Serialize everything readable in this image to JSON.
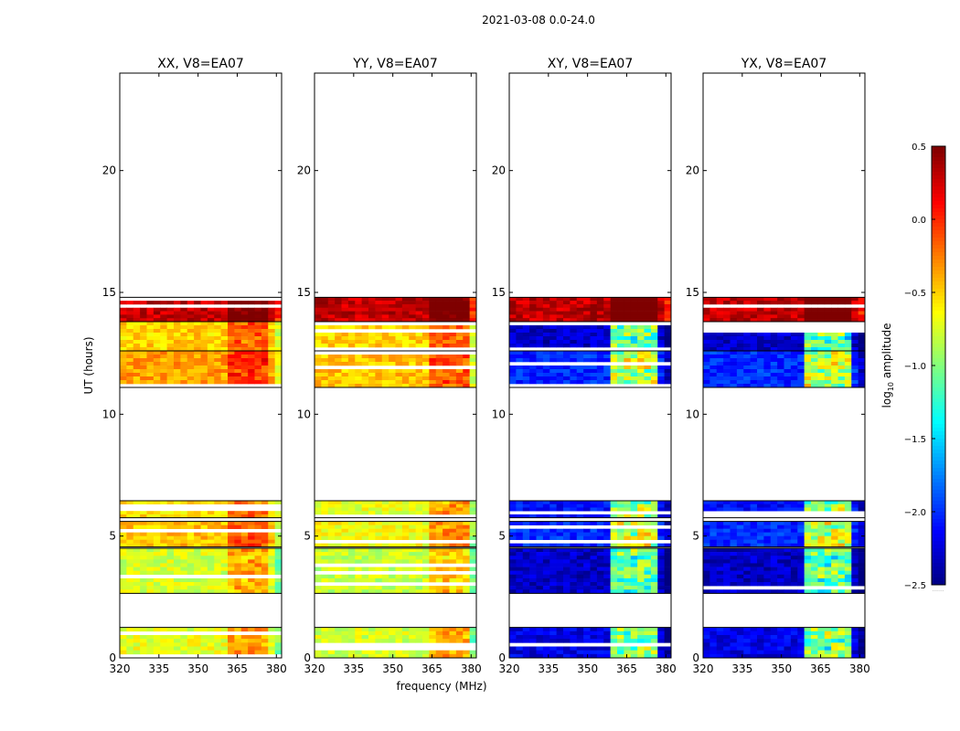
{
  "title": "2021-03-08 0.0-24.0",
  "xlabel": "frequency (MHz)",
  "ylabel": "UT (hours)",
  "colorbar_label": "log",
  "colorbar_label_sub": "10",
  "colorbar_label_rest": " amplitude",
  "colorbar_extra": ".......",
  "colormap": [
    "#00007f",
    "#0000ff",
    "#007fff",
    "#00ffff",
    "#7fff7f",
    "#ffff00",
    "#ff7f00",
    "#ff0000",
    "#7f0000"
  ],
  "chart_data": [
    {
      "type": "heatmap",
      "title": "XX, V8=EA07",
      "xlim": [
        320,
        382
      ],
      "ylim": [
        0,
        24
      ],
      "xticks": [
        320,
        335,
        350,
        365,
        380
      ],
      "yticks": [
        0,
        5,
        10,
        15,
        20
      ],
      "yticklabels": [
        "0",
        "5",
        "10",
        "15",
        "20"
      ],
      "base": {
        "low": -0.35,
        "high": -0.3
      },
      "blocks": [
        {
          "t0": 0.0,
          "t1": 1.25,
          "value": -0.7
        },
        {
          "t0": 2.65,
          "t1": 4.5,
          "value": -0.75
        },
        {
          "t0": 4.55,
          "t1": 5.6,
          "value": -0.45
        },
        {
          "t0": 5.75,
          "t1": 6.45,
          "value": -0.55
        },
        {
          "t0": 11.1,
          "t1": 12.6,
          "value": -0.35
        },
        {
          "t0": 12.6,
          "t1": 13.8,
          "value": -0.5
        },
        {
          "t0": 13.8,
          "t1": 14.8,
          "value": 0.3
        }
      ],
      "rfi_band": {
        "f0": 362,
        "f1": 378,
        "boost": 0.35
      }
    },
    {
      "type": "heatmap",
      "title": "YY, V8=EA07",
      "xlim": [
        320,
        382
      ],
      "ylim": [
        0,
        24
      ],
      "xticks": [
        320,
        335,
        350,
        365,
        380
      ],
      "yticks": [
        0,
        5,
        10,
        15,
        20
      ],
      "yticklabels": [
        "0",
        "5",
        "10",
        "15",
        "20"
      ],
      "blocks": [
        {
          "t0": 0.0,
          "t1": 1.25,
          "value": -0.75
        },
        {
          "t0": 2.65,
          "t1": 4.5,
          "value": -0.8
        },
        {
          "t0": 4.55,
          "t1": 5.6,
          "value": -0.65
        },
        {
          "t0": 5.75,
          "t1": 6.45,
          "value": -0.7
        },
        {
          "t0": 11.1,
          "t1": 12.6,
          "value": -0.45
        },
        {
          "t0": 12.6,
          "t1": 13.8,
          "value": -0.5
        },
        {
          "t0": 13.8,
          "t1": 14.8,
          "value": 0.3
        }
      ],
      "rfi_band": {
        "f0": 364,
        "f1": 380,
        "boost": 0.35
      }
    },
    {
      "type": "heatmap",
      "title": "XY, V8=EA07",
      "xlim": [
        320,
        382
      ],
      "ylim": [
        0,
        24
      ],
      "xticks": [
        320,
        335,
        350,
        365,
        380
      ],
      "yticks": [
        0,
        5,
        10,
        15,
        20
      ],
      "yticklabels": [
        "0",
        "5",
        "10",
        "15",
        "20"
      ],
      "blocks": [
        {
          "t0": 0.0,
          "t1": 1.25,
          "value": -2.2
        },
        {
          "t0": 2.65,
          "t1": 4.5,
          "value": -2.3
        },
        {
          "t0": 4.55,
          "t1": 5.6,
          "value": -2.0
        },
        {
          "t0": 5.75,
          "t1": 6.45,
          "value": -2.1
        },
        {
          "t0": 11.1,
          "t1": 12.6,
          "value": -2.0
        },
        {
          "t0": 12.6,
          "t1": 13.8,
          "value": -2.3
        },
        {
          "t0": 13.8,
          "t1": 14.8,
          "value": 0.3
        }
      ],
      "rfi_band": {
        "f0": 360,
        "f1": 378,
        "boost": 1.2
      }
    },
    {
      "type": "heatmap",
      "title": "YX, V8=EA07",
      "xlim": [
        320,
        382
      ],
      "ylim": [
        0,
        24
      ],
      "xticks": [
        320,
        335,
        350,
        365,
        380
      ],
      "yticks": [
        0,
        5,
        10,
        15,
        20
      ],
      "yticklabels": [
        "0",
        "5",
        "10",
        "15",
        "20"
      ],
      "blocks": [
        {
          "t0": 0.0,
          "t1": 1.25,
          "value": -2.2
        },
        {
          "t0": 2.65,
          "t1": 4.5,
          "value": -2.3
        },
        {
          "t0": 4.55,
          "t1": 5.6,
          "value": -2.0
        },
        {
          "t0": 5.75,
          "t1": 6.45,
          "value": -2.1
        },
        {
          "t0": 11.1,
          "t1": 12.6,
          "value": -2.0
        },
        {
          "t0": 12.6,
          "t1": 13.8,
          "value": -2.3
        },
        {
          "t0": 13.8,
          "t1": 14.8,
          "value": 0.3
        }
      ],
      "rfi_band": {
        "f0": 360,
        "f1": 378,
        "boost": 1.2
      }
    }
  ],
  "colorbar": {
    "vmin": -2.5,
    "vmax": 0.5,
    "ticks": [
      0.5,
      0.0,
      -0.5,
      -1.0,
      -1.5,
      -2.0,
      -2.5
    ],
    "ticklabels": [
      "0.5",
      "0.0",
      "−0.5",
      "−1.0",
      "−1.5",
      "−2.0",
      "−2.5"
    ]
  }
}
